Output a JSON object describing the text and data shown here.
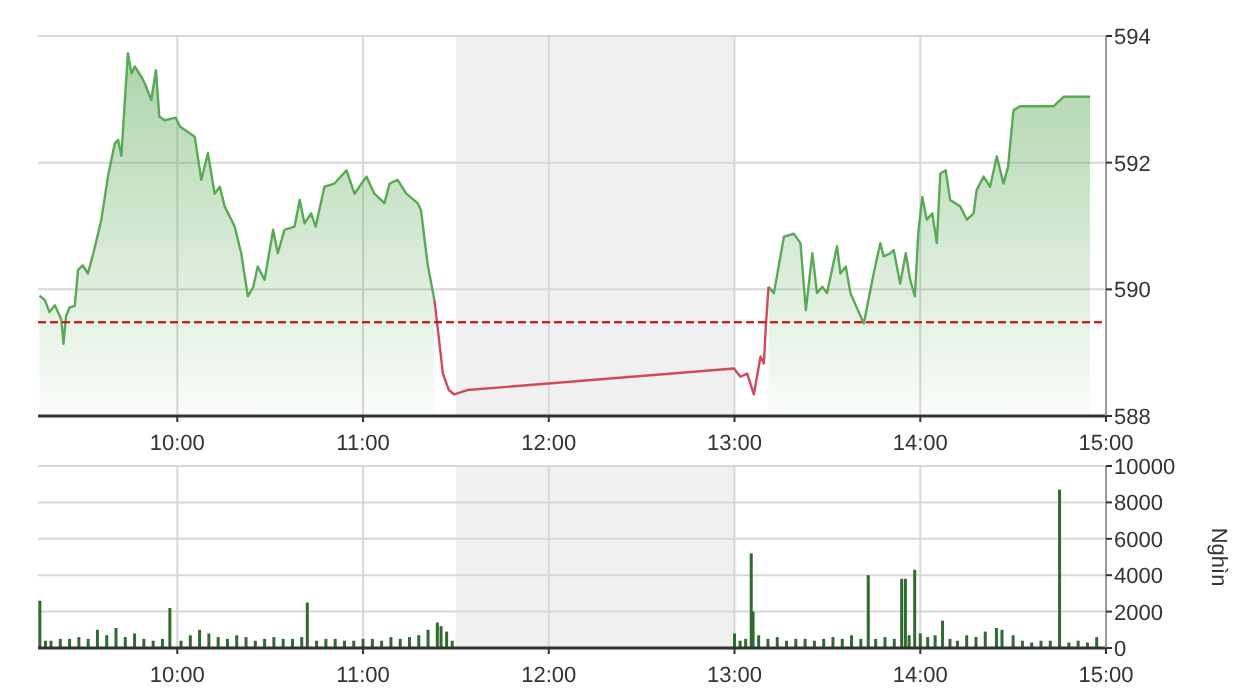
{
  "chart_data": [
    {
      "type": "area",
      "xlim": [
        9.25,
        15
      ],
      "xticks": [
        {
          "value": 10,
          "label": "10:00"
        },
        {
          "value": 11,
          "label": "11:00"
        },
        {
          "value": 12,
          "label": "12:00"
        },
        {
          "value": 13,
          "label": "13:00"
        },
        {
          "value": 14,
          "label": "14:00"
        },
        {
          "value": 15,
          "label": "15:00"
        }
      ],
      "ylim": [
        588,
        594
      ],
      "yticks": [
        588,
        590,
        592,
        594
      ],
      "grid": true,
      "ref_lines": [
        {
          "axis": "y",
          "value": 589.48,
          "color": "#cc0000",
          "line_style": "dashed"
        }
      ],
      "bands": [
        {
          "axis": "x",
          "from": 11.5,
          "to": 13,
          "color": "#f0f0f0"
        }
      ],
      "series": [
        {
          "color": "#5aaa55",
          "x": [
            9.258,
            9.287,
            9.312,
            9.341,
            9.376,
            9.387,
            9.401,
            9.419,
            9.448,
            9.466,
            9.491,
            9.519,
            9.548,
            9.591,
            9.627,
            9.663,
            9.681,
            9.699,
            9.734,
            9.753,
            9.771,
            9.806,
            9.825,
            9.86,
            9.885,
            9.903,
            9.932,
            9.992,
            10.014,
            10.094,
            10.129,
            10.165,
            10.201,
            10.229,
            10.255,
            10.309,
            10.344,
            10.38,
            10.409,
            10.433,
            10.47,
            10.516,
            10.541,
            10.577,
            10.631,
            10.659,
            10.685,
            10.72,
            10.745,
            10.792,
            10.846,
            10.911,
            10.954,
            11.018,
            11.061,
            11.115,
            11.143,
            11.186,
            11.233,
            11.294,
            11.312,
            11.347,
            11.384,
            12.2,
            13.183,
            13.212,
            13.266,
            13.319,
            13.355,
            13.384,
            13.419,
            13.444,
            13.473,
            13.498,
            13.552,
            13.57,
            13.599,
            13.624,
            13.696,
            13.749,
            13.785,
            13.803,
            13.839,
            13.857,
            13.892,
            13.922,
            13.946,
            13.971,
            13.989,
            14.011,
            14.035,
            14.065,
            14.089,
            14.108,
            14.137,
            14.161,
            14.215,
            14.251,
            14.287,
            14.304,
            14.341,
            14.376,
            14.412,
            14.448,
            14.473,
            14.502,
            14.538,
            14.717,
            14.771,
            14.914
          ],
          "values": [
            589.9,
            589.83,
            589.64,
            589.75,
            589.52,
            589.14,
            589.58,
            589.71,
            589.74,
            590.31,
            590.38,
            590.25,
            590.57,
            591.1,
            591.79,
            592.3,
            592.36,
            592.11,
            593.73,
            593.41,
            593.52,
            593.36,
            593.25,
            592.99,
            593.46,
            592.73,
            592.67,
            592.71,
            592.57,
            592.41,
            591.73,
            592.15,
            591.51,
            591.62,
            591.31,
            590.99,
            590.57,
            589.89,
            590.04,
            590.36,
            590.15,
            590.94,
            590.57,
            590.94,
            590.99,
            591.41,
            591.04,
            591.2,
            590.99,
            591.62,
            591.67,
            591.88,
            591.51,
            591.78,
            591.51,
            591.36,
            591.67,
            591.73,
            591.51,
            591.36,
            591.25,
            590.41,
            589.83,
            null,
            590.04,
            589.94,
            590.83,
            590.88,
            590.73,
            589.67,
            590.57,
            589.94,
            590.04,
            589.94,
            590.68,
            590.25,
            590.36,
            589.94,
            589.46,
            590.25,
            590.73,
            590.52,
            590.57,
            590.62,
            590.09,
            590.57,
            590.15,
            589.89,
            590.88,
            591.46,
            591.1,
            591.2,
            590.73,
            591.83,
            591.88,
            591.41,
            591.31,
            591.1,
            591.2,
            591.57,
            591.78,
            591.62,
            592.1,
            591.67,
            591.94,
            592.83,
            592.89,
            592.89,
            593.04,
            593.04
          ]
        },
        {
          "type": "line",
          "color": "#d04a5a",
          "x": [
            11.384,
            11.401,
            11.43,
            11.462,
            11.491,
            11.562,
            12.997,
            13.032,
            13.068,
            13.104,
            13.14,
            13.158,
            13.169,
            13.183
          ],
          "values": [
            589.83,
            589.41,
            588.67,
            588.41,
            588.34,
            588.41,
            588.75,
            588.62,
            588.67,
            588.34,
            588.94,
            588.83,
            589.43,
            590.04
          ]
        }
      ]
    },
    {
      "type": "bar",
      "xlim": [
        9.25,
        15
      ],
      "xticks": [
        {
          "value": 10,
          "label": "10:00"
        },
        {
          "value": 11,
          "label": "11:00"
        },
        {
          "value": 12,
          "label": "12:00"
        },
        {
          "value": 13,
          "label": "13:00"
        },
        {
          "value": 14,
          "label": "14:00"
        },
        {
          "value": 15,
          "label": "15:00"
        }
      ],
      "ylim": [
        0,
        10000
      ],
      "yticks": [
        0,
        2000,
        4000,
        6000,
        8000,
        10000
      ],
      "ylabel": "Nghìn",
      "grid": true,
      "bands": [
        {
          "axis": "x",
          "from": 11.5,
          "to": 13,
          "color": "#f0f0f0"
        }
      ],
      "series": [
        {
          "color": "#2f6a2f",
          "x": [
            9.26,
            9.29,
            9.32,
            9.37,
            9.42,
            9.47,
            9.52,
            9.57,
            9.62,
            9.67,
            9.72,
            9.77,
            9.82,
            9.87,
            9.92,
            9.96,
            10.02,
            10.07,
            10.12,
            10.17,
            10.22,
            10.27,
            10.32,
            10.37,
            10.42,
            10.47,
            10.52,
            10.57,
            10.62,
            10.67,
            10.7,
            10.75,
            10.8,
            10.85,
            10.9,
            10.95,
            11.0,
            11.05,
            11.1,
            11.15,
            11.2,
            11.25,
            11.3,
            11.35,
            11.4,
            11.42,
            11.45,
            11.48,
            13.0,
            13.03,
            13.06,
            13.09,
            13.1,
            13.13,
            13.18,
            13.23,
            13.28,
            13.33,
            13.38,
            13.43,
            13.48,
            13.53,
            13.58,
            13.63,
            13.68,
            13.72,
            13.76,
            13.81,
            13.86,
            13.9,
            13.92,
            13.94,
            13.97,
            14.0,
            14.04,
            14.08,
            14.12,
            14.16,
            14.2,
            14.25,
            14.3,
            14.35,
            14.41,
            14.44,
            14.5,
            14.55,
            14.6,
            14.65,
            14.7,
            14.75,
            14.8,
            14.85,
            14.9,
            14.95
          ],
          "values": [
            2600,
            400,
            400,
            500,
            500,
            600,
            500,
            1000,
            700,
            1100,
            600,
            800,
            500,
            400,
            500,
            2200,
            400,
            700,
            1000,
            800,
            600,
            500,
            700,
            600,
            400,
            500,
            600,
            500,
            500,
            600,
            2500,
            400,
            500,
            500,
            400,
            400,
            500,
            500,
            400,
            600,
            500,
            600,
            700,
            1000,
            1400,
            1200,
            900,
            400,
            800,
            400,
            500,
            5200,
            2000,
            700,
            500,
            600,
            400,
            500,
            500,
            400,
            500,
            600,
            500,
            700,
            500,
            4000,
            500,
            600,
            500,
            3800,
            3800,
            700,
            4300,
            800,
            600,
            700,
            1500,
            500,
            400,
            700,
            600,
            900,
            1100,
            1000,
            700,
            400,
            300,
            400,
            400,
            8700,
            300,
            400,
            300,
            600
          ]
        }
      ]
    }
  ]
}
